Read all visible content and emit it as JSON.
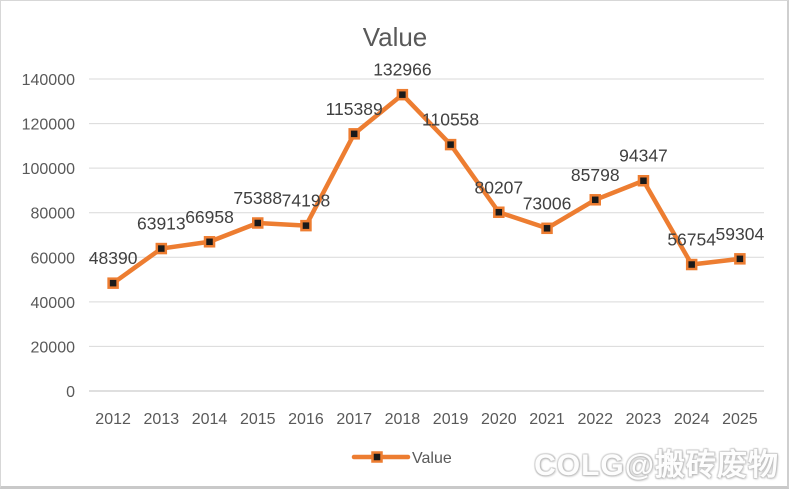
{
  "chart_data": {
    "type": "line",
    "title": "Value",
    "categories": [
      "2012",
      "2013",
      "2014",
      "2015",
      "2016",
      "2017",
      "2018",
      "2019",
      "2020",
      "2021",
      "2022",
      "2023",
      "2024",
      "2025"
    ],
    "series": [
      {
        "name": "Value",
        "values": [
          48390,
          63913,
          66958,
          75388,
          74198,
          115389,
          132966,
          110558,
          80207,
          73006,
          85798,
          94347,
          56754,
          59304
        ]
      }
    ],
    "ylim": [
      0,
      140000
    ],
    "ytick_step": 20000,
    "ytick_labels": [
      "0",
      "20000",
      "40000",
      "60000",
      "80000",
      "100000",
      "120000",
      "140000"
    ],
    "grid": true,
    "data_labels": true,
    "marker": "square",
    "legend_position": "bottom"
  },
  "watermark": {
    "text": "COLG@搬砖废物"
  },
  "colors": {
    "line": "#ED7D31",
    "marker_fill": "#1A1A1A",
    "gridline": "#D9D9D9",
    "axis_line": "#BFBFBF",
    "axis_text": "#595959",
    "data_label_text": "#404040",
    "title_text": "#595959",
    "watermark_text": "#FDFDFD",
    "background": "#FFFFFF"
  }
}
